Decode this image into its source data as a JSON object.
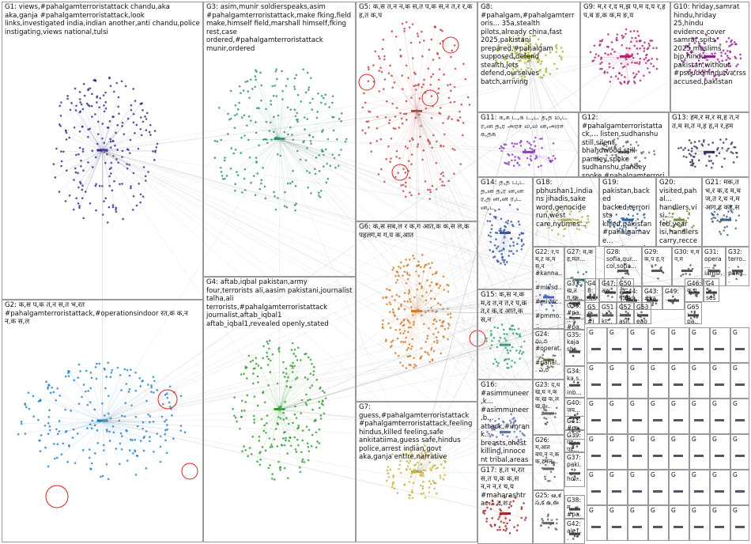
{
  "groups": [
    "G1: views,#pahalgamterroristattack  chandu,aka  aka,ganja #pahalgamterroristattack,look  links,investigated  india,indian another,anti  chandu,police  instigating,views  national,tulsi",
    "G2: क,स  प,क  त,न  स,त  भ,रत #pahalgamterroristattack,#operationsindoor  रत,क  क,न  न,क स,ल",
    "G3: asim,munir  soldierspeaks,asim #pahalgamterroristattack,make  fking,field make,himself  field,marshall  himself,fking rest,case  ordered,#pahalgamterroristattack munir,ordered",
    "G4: aftab,iqbal  pakistan,army  four,terrorists ali,aasim  pakistani,journalist  talha,ali terrorists,#pahalgamterroristattack journalist,aftab_iqbal1  aftab_iqbal1,revealed openly,stated",
    "G5: क,स  त,न  न,क  स,त  प,क  स,न त,र  र,क  ह,त  क,प",
    "G6: क,स  सब,ल  र  क,ग  आत,क  क,स ल,क  पहलग,म  ग,य  क,आत",
    "G7: guess,#pahalgamterroristattack #pahalgamterroristattack,feeling hindus,killed  feeling,safe ankitatiima,guess  safe,hindus police,arrest  indian,govt  aka,ganja entire,narrative",
    "G8: #pahalgam,#pahalgamterroris... 35a,stealth  pilots,already china,fast  2025,pakistani prepared,#pahalgam supposed,defend  stealth,jets defend,ourselves batch,arriving",
    "G9: म,र  र,द  म,झ  प,म  द,य र,ह  प,ब  ङ,क  क,म  ङ,य",
    "G10: hriday,samrat hindu,hriday  25,hindu evidence,cover samrat,spits 2025,muslims bjp,hindu pakistan,without #pseudohindutva,rss accused,pakistan",
    "G11: க,க  ட,க  ட,ட  த,த ம,ட  ர,ன  த,ர  அரச  ல,ல ன,அரச  க,தக",
    "G12: #pahalgamterroristattack,... listen,sudhanshu still,silent  bhandwood,still pandey,spoke sudhanshu,pandey spoke,#pahalgamterrorist... #operationsindoor,happe... happened,bhandwood...",
    "G13: हम,र  स,र  स,ह  त,न त,म  स,त  न,ह  ह,न र,हम",
    "G14: த,த  ப,ட த,ன  த,ர ன,ன  ர,த ன,ன  ர,ட ன,ட",
    "G15: क,स  न,क म,द  त,न  त,र प,क  त,र  क,द आत,क  स,न",
    "G16: #asimmuneer,k... #asimmuneer,b... attack,#imrank... breasts,chest killing,innocent tribal,areas medals,#asim... chest,#pulwam...",
    "G17: ह,त  भ,रत स,त  प,क  क,स न,न  न,र  च,य #maharashtrac... द,श",
    "G18: pbhushan1,indians jihadis,sake word,genocide run,west care,nytimes...",
    "G19: pakistan,backed backed,terrorists killed,pakistan #pahalgamave... terrorists,pahal...",
    "G20: visited,pahal... handlers,visi... feb,year isi,handlers carry,recce...",
    "G21: मक,त  भ,र  क,द म,च  ज,त र,ध  न,म आग,ह  कह,स",
    "G22: र,प म,ट  क,म स,न #kanna... #mivsd... #mivdc... #pmmo... #operat...",
    "G23: द,ध  ख,घ  न,क क,ख फ,ल  ख,त...",
    "G24: ఘ,న #operat... #pahal... ఎ,ర",
    "G25: ఆ,శ స,క ఉ,ఈ",
    "G26: म,आत बच,न  न,क  क,हमल...",
    "G27: म,क ह,मल...",
    "G28: sofia,qur... col,sofia...",
    "G29: क,प ह,ए",
    "G30: म,म न,म",
    "G31: opera... iamsr...",
    "G32: terro... paha...",
    "G33: ख,त ग,ख...",
    "G34: ka,s... inb...",
    "G35: kaja shr...",
    "G36: #pa... #pa...",
    "G37: paki... hol...",
    "G38: म,... #pa...",
    "G39: पह... पह...",
    "G40: जय... ...",
    "G41: #pa... ...",
    "G42: air,f...",
    "G43: #ka...",
    "G44: #ka...",
    "G45: ses...",
    "G46: क,प",
    "G47: aw...",
    "G48: न,र...",
    "G49: ...",
    "G50: ग,ख",
    "G51: kl...",
    "G52: asif...",
    "G53: eao...",
    "G56: #isl...",
    "G65: pa..."
  ],
  "small_groups": [
    "G",
    "G",
    "G",
    "G",
    "G",
    "G",
    "G",
    "G",
    "G",
    "G",
    "G",
    "G",
    "G",
    "G",
    "G",
    "G",
    "G",
    "G",
    "G",
    "G",
    "G",
    "G",
    "G",
    "G",
    "G",
    "G",
    "G",
    "G",
    "G",
    "G",
    "G",
    "G",
    "G",
    "G",
    "G",
    "G",
    "G",
    "G",
    "G",
    "G",
    "G",
    "G",
    "G",
    "G",
    "G",
    "G",
    "G",
    "G"
  ]
}
